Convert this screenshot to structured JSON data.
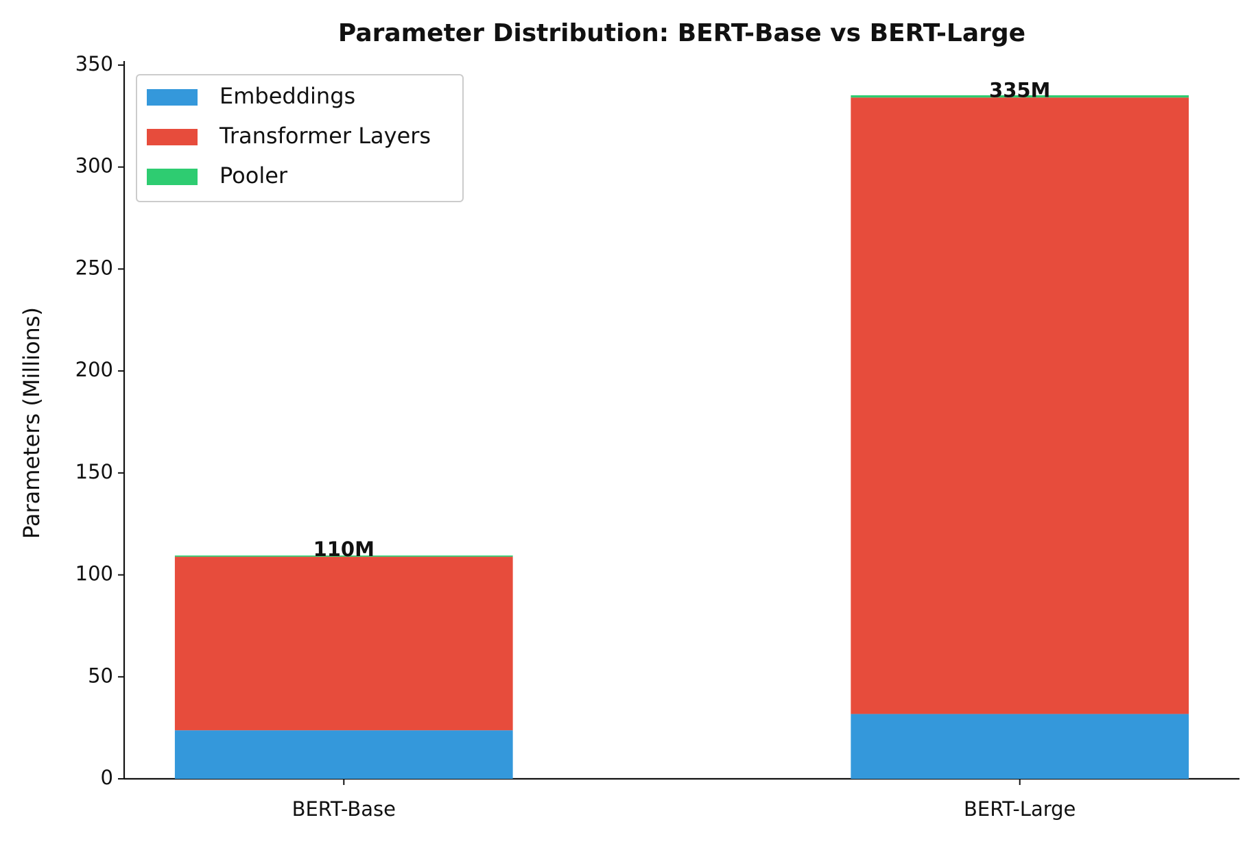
{
  "chart_data": {
    "type": "stacked_bar",
    "title": "Parameter Distribution: BERT-Base vs BERT-Large",
    "y_label": "Parameters (Millions)",
    "categories": [
      "BERT-Base",
      "BERT-Large"
    ],
    "series": [
      {
        "name": "Embeddings",
        "color": "#3498db",
        "values": [
          23.8,
          31.8
        ]
      },
      {
        "name": "Transformer Layers",
        "color": "#e74c3c",
        "values": [
          85.1,
          302.3
        ]
      },
      {
        "name": "Pooler",
        "color": "#2ecc71",
        "values": [
          0.6,
          1.1
        ]
      }
    ],
    "totals": {
      "values": [
        110,
        335
      ],
      "value_labels": [
        "110M",
        "335M"
      ]
    },
    "ylim": [
      0,
      352
    ],
    "yticks": [
      0,
      50,
      100,
      150,
      200,
      250,
      300,
      350
    ],
    "legend": "upper-left",
    "grid": false
  }
}
